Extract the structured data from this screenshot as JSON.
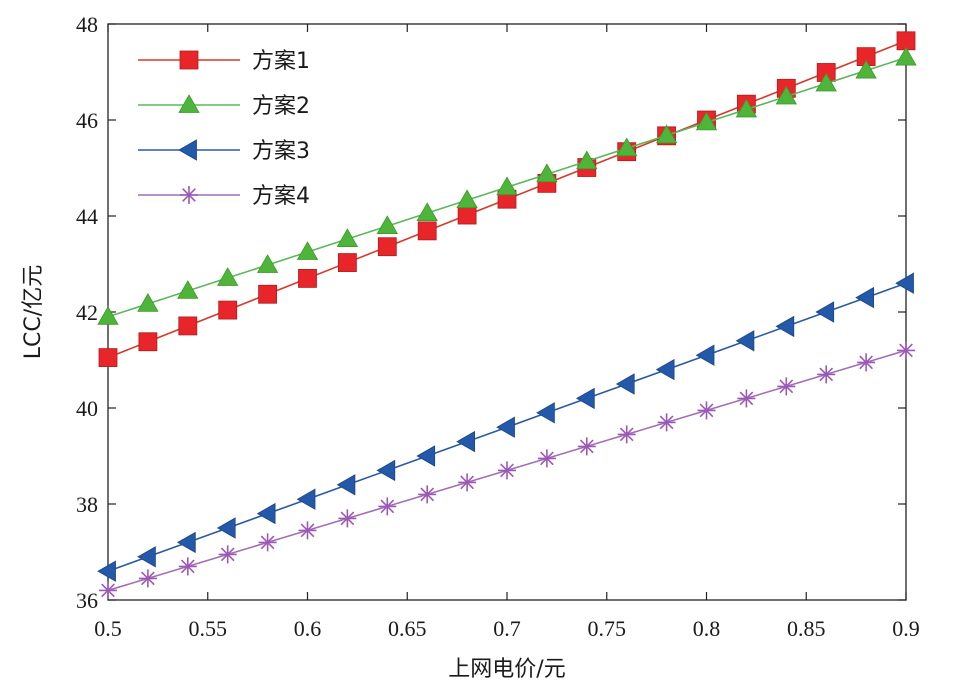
{
  "chart_data": {
    "type": "line",
    "xlabel": "上网电价/元",
    "ylabel": "LCC/亿元",
    "xlim": [
      0.5,
      0.9
    ],
    "ylim": [
      36,
      48
    ],
    "xticks": [
      "0.5",
      "0.55",
      "0.6",
      "0.65",
      "0.7",
      "0.75",
      "0.8",
      "0.85",
      "0.9"
    ],
    "yticks": [
      "36",
      "38",
      "40",
      "42",
      "44",
      "46",
      "48"
    ],
    "grid": false,
    "legend_position": "top-left",
    "x": [
      0.5,
      0.52,
      0.54,
      0.56,
      0.58,
      0.6,
      0.62,
      0.64,
      0.66,
      0.68,
      0.7,
      0.72,
      0.74,
      0.76,
      0.78,
      0.8,
      0.82,
      0.84,
      0.86,
      0.88,
      0.9
    ],
    "series": [
      {
        "name": "方案1",
        "color": "#e8262a",
        "line_color": "#d33a2c",
        "marker": "square",
        "values": [
          41.05,
          41.38,
          41.71,
          42.04,
          42.37,
          42.7,
          43.03,
          43.36,
          43.69,
          44.02,
          44.35,
          44.68,
          45.01,
          45.34,
          45.67,
          46.0,
          46.33,
          46.66,
          46.99,
          47.32,
          47.65
        ]
      },
      {
        "name": "方案2",
        "color": "#4fb43a",
        "line_color": "#5cb85c",
        "marker": "triangle-up",
        "values": [
          41.9,
          42.17,
          42.44,
          42.71,
          42.98,
          43.25,
          43.52,
          43.79,
          44.06,
          44.33,
          44.6,
          44.87,
          45.14,
          45.41,
          45.68,
          45.95,
          46.22,
          46.49,
          46.76,
          47.03,
          47.3
        ]
      },
      {
        "name": "方案3",
        "color": "#2458a8",
        "line_color": "#2a5aa4",
        "marker": "triangle-left",
        "values": [
          36.6,
          36.9,
          37.2,
          37.5,
          37.8,
          38.1,
          38.4,
          38.7,
          39.0,
          39.3,
          39.6,
          39.9,
          40.2,
          40.5,
          40.8,
          41.1,
          41.4,
          41.7,
          42.0,
          42.3,
          42.6
        ]
      },
      {
        "name": "方案4",
        "color": "#9b59b6",
        "line_color": "#a36fb3",
        "marker": "asterisk",
        "values": [
          36.2,
          36.45,
          36.7,
          36.95,
          37.2,
          37.45,
          37.7,
          37.95,
          38.2,
          38.45,
          38.7,
          38.95,
          39.2,
          39.45,
          39.7,
          39.95,
          40.2,
          40.45,
          40.7,
          40.95,
          41.2
        ]
      }
    ]
  }
}
